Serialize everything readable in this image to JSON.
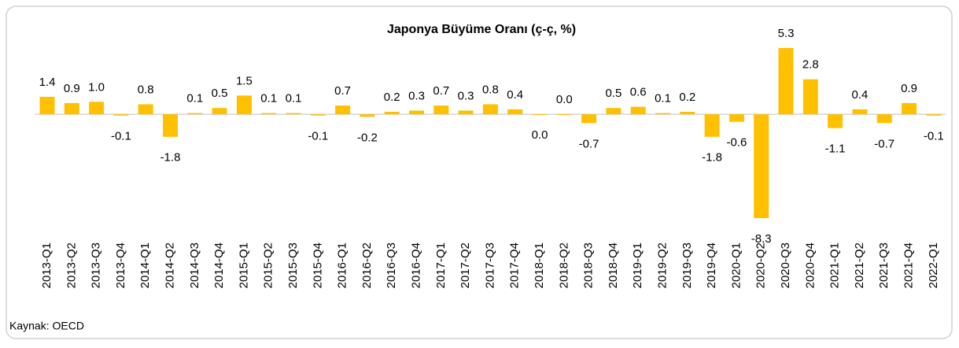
{
  "chart_data": {
    "type": "bar",
    "title": "Japonya Büyüme Oranı (ç-ç, %)",
    "categories": [
      "2013-Q1",
      "2013-Q2",
      "2013-Q3",
      "2013-Q4",
      "2014-Q1",
      "2014-Q2",
      "2014-Q3",
      "2014-Q4",
      "2015-Q1",
      "2015-Q2",
      "2015-Q3",
      "2015-Q4",
      "2016-Q1",
      "2016-Q2",
      "2016-Q3",
      "2016-Q4",
      "2017-Q1",
      "2017-Q2",
      "2017-Q3",
      "2017-Q4",
      "2018-Q1",
      "2018-Q2",
      "2018-Q3",
      "2018-Q4",
      "2019-Q1",
      "2019-Q2",
      "2019-Q3",
      "2019-Q4",
      "2020-Q1",
      "2020-Q2",
      "2020-Q3",
      "2020-Q4",
      "2021-Q1",
      "2021-Q2",
      "2021-Q3",
      "2021-Q4",
      "2022-Q1"
    ],
    "values": [
      1.4,
      0.9,
      1.0,
      -0.1,
      0.8,
      -1.8,
      0.1,
      0.5,
      1.5,
      0.1,
      0.1,
      -0.1,
      0.7,
      -0.2,
      0.2,
      0.3,
      0.7,
      0.3,
      0.8,
      0.4,
      0.0,
      0.0,
      -0.7,
      0.5,
      0.6,
      0.1,
      0.2,
      -1.8,
      -0.6,
      -8.3,
      5.3,
      2.8,
      -1.1,
      0.4,
      -0.7,
      0.9,
      -0.1
    ],
    "value_labels": [
      "1.4",
      "0.9",
      "1.0",
      "-0.1",
      "0.8",
      "-1.8",
      "0.1",
      "0.5",
      "1.5",
      "0.1",
      "0.1",
      "-0.1",
      "0.7",
      "-0.2",
      "0.2",
      "0.3",
      "0.7",
      "0.3",
      "0.8",
      "0.4",
      "0.0",
      "0.0",
      "-0.7",
      "0.5",
      "0.6",
      "0.1",
      "0.2",
      "-1.8",
      "-0.6",
      "-8.3",
      "5.3",
      "2.8",
      "-1.1",
      "0.4",
      "-0.7",
      "0.9",
      "-0.1"
    ],
    "color": "#ffc000",
    "source": "Kaynak: OECD"
  }
}
